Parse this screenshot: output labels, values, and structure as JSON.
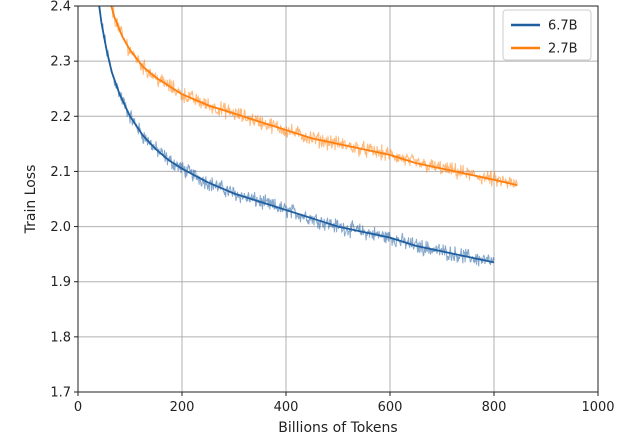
{
  "chart_data": {
    "type": "line",
    "xlabel": "Billions of Tokens",
    "ylabel": "Train Loss",
    "xlim": [
      0,
      1000
    ],
    "ylim": [
      1.7,
      2.4
    ],
    "xticks": [
      0,
      200,
      400,
      600,
      800,
      1000
    ],
    "yticks": [
      1.7,
      1.8,
      1.9,
      2.0,
      2.1,
      2.2,
      2.3,
      2.4
    ],
    "grid": true,
    "legend_position": "top-right",
    "series": [
      {
        "name": "6.7B",
        "color": "#1f5fa0",
        "x": [
          38,
          45,
          55,
          65,
          80,
          100,
          125,
          150,
          175,
          200,
          250,
          300,
          350,
          400,
          450,
          500,
          550,
          600,
          650,
          700,
          750,
          800
        ],
        "y": [
          2.42,
          2.37,
          2.32,
          2.28,
          2.24,
          2.2,
          2.165,
          2.14,
          2.12,
          2.105,
          2.08,
          2.06,
          2.045,
          2.03,
          2.015,
          2.0,
          1.99,
          1.98,
          1.965,
          1.955,
          1.945,
          1.935
        ]
      },
      {
        "name": "2.7B",
        "color": "#ff7f0e",
        "x": [
          58,
          70,
          85,
          100,
          125,
          150,
          175,
          200,
          250,
          300,
          350,
          400,
          450,
          500,
          550,
          600,
          650,
          700,
          750,
          800,
          845
        ],
        "y": [
          2.42,
          2.38,
          2.345,
          2.32,
          2.29,
          2.27,
          2.255,
          2.24,
          2.22,
          2.205,
          2.19,
          2.175,
          2.16,
          2.15,
          2.14,
          2.13,
          2.115,
          2.105,
          2.095,
          2.085,
          2.075
        ]
      }
    ]
  }
}
